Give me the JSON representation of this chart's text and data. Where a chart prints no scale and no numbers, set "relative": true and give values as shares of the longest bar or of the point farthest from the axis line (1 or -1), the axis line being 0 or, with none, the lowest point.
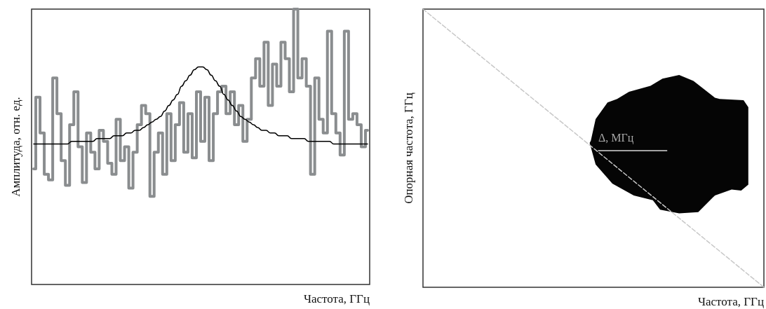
{
  "chart_data": [
    {
      "type": "line",
      "relative": true,
      "xlabel": "Частота, ГГц",
      "ylabel": "Амплитуда, отн. ед.",
      "grid": false,
      "marker": "none",
      "categories": [
        null,
        null,
        null,
        null,
        null,
        null,
        null,
        null,
        null,
        null,
        null,
        null,
        null,
        null,
        null,
        null,
        null,
        null,
        null,
        null,
        null,
        null,
        null,
        null,
        null,
        null,
        null,
        null,
        null,
        null,
        null,
        null,
        null,
        null,
        null,
        null,
        null,
        null,
        null,
        null,
        null,
        null,
        null,
        null,
        null,
        null,
        null,
        null,
        null,
        null,
        null,
        null,
        null,
        null,
        null,
        null,
        null,
        null,
        null,
        null,
        null,
        null,
        null,
        null,
        null,
        null,
        null,
        null,
        null,
        null,
        null,
        null,
        null,
        null,
        null,
        null,
        null,
        null,
        null,
        null
      ],
      "series": [
        {
          "type": "step",
          "color": "#8a8d8f",
          "values": [
            0.42,
            0.68,
            0.55,
            0.4,
            0.38,
            0.75,
            0.62,
            0.45,
            0.36,
            0.58,
            0.7,
            0.5,
            0.37,
            0.55,
            0.48,
            0.42,
            0.56,
            0.52,
            0.44,
            0.4,
            0.6,
            0.45,
            0.5,
            0.35,
            0.48,
            0.58,
            0.65,
            0.62,
            0.32,
            0.48,
            0.55,
            0.4,
            0.62,
            0.45,
            0.58,
            0.66,
            0.48,
            0.62,
            0.46,
            0.7,
            0.52,
            0.68,
            0.45,
            0.62,
            0.7,
            0.72,
            0.62,
            0.7,
            0.58,
            0.65,
            0.52,
            0.6,
            0.75,
            0.82,
            0.72,
            0.88,
            0.65,
            0.8,
            0.72,
            0.88,
            0.82,
            0.7,
            1.0,
            0.75,
            0.82,
            0.72,
            0.4,
            0.75,
            0.6,
            0.55,
            0.92,
            0.62,
            0.55,
            0.47,
            0.92,
            0.6,
            0.62,
            0.58,
            0.5,
            0.56
          ]
        },
        {
          "color": "#000000",
          "values": [
            0.51,
            0.51,
            0.51,
            0.51,
            0.51,
            0.51,
            0.51,
            0.51,
            0.51,
            0.52,
            0.52,
            0.52,
            0.52,
            0.52,
            0.52,
            0.53,
            0.53,
            0.53,
            0.53,
            0.54,
            0.54,
            0.54,
            0.55,
            0.55,
            0.56,
            0.56,
            0.57,
            0.58,
            0.59,
            0.6,
            0.61,
            0.63,
            0.65,
            0.67,
            0.69,
            0.72,
            0.74,
            0.76,
            0.78,
            0.79,
            0.79,
            0.78,
            0.76,
            0.74,
            0.72,
            0.69,
            0.67,
            0.65,
            0.63,
            0.61,
            0.6,
            0.59,
            0.58,
            0.57,
            0.56,
            0.56,
            0.55,
            0.55,
            0.54,
            0.54,
            0.54,
            0.53,
            0.53,
            0.53,
            0.53,
            0.52,
            0.52,
            0.52,
            0.52,
            0.52,
            0.52,
            0.51,
            0.51,
            0.51,
            0.51,
            0.51,
            0.51,
            0.51,
            0.51,
            0.51
          ]
        }
      ]
    },
    {
      "type": "line",
      "relative": true,
      "xlabel": "Частота, ГГц",
      "ylabel": "Опорная частота, ГГц",
      "grid": false,
      "marker": "none",
      "annotations": [
        "Δ, МГц"
      ],
      "categories": [
        null,
        null
      ],
      "series": [
        {
          "color": "#c8c8c8",
          "line_style": "dashed",
          "values": [
            1,
            0
          ]
        }
      ]
    }
  ]
}
